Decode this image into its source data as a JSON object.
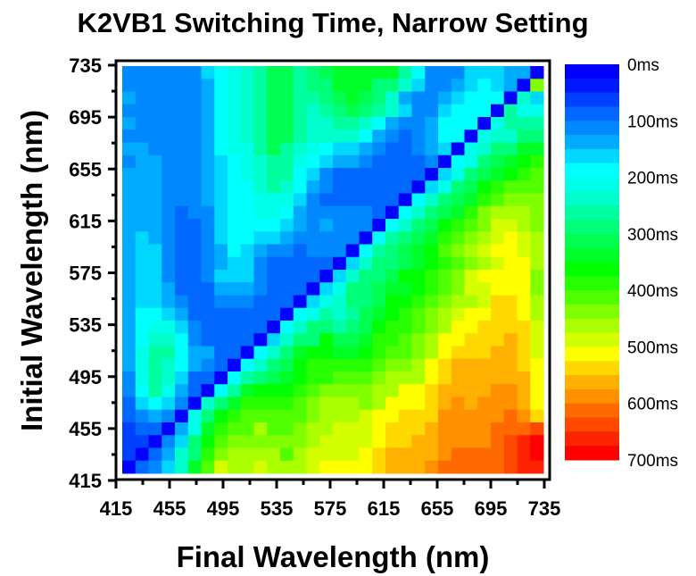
{
  "chart_data": {
    "type": "heatmap",
    "title": "K2VB1 Switching Time, Narrow Setting",
    "xlabel": "Final Wavelength (nm)",
    "ylabel": "Initial Wavelength (nm)",
    "xlim": [
      415,
      735
    ],
    "ylim": [
      415,
      735
    ],
    "x_ticks": [
      "415",
      "455",
      "495",
      "535",
      "575",
      "615",
      "655",
      "695",
      "735"
    ],
    "y_ticks": [
      "415",
      "455",
      "495",
      "535",
      "575",
      "615",
      "655",
      "695",
      "735"
    ],
    "x": [
      420,
      430,
      440,
      450,
      460,
      470,
      480,
      490,
      500,
      510,
      520,
      530,
      540,
      550,
      560,
      570,
      580,
      590,
      600,
      610,
      620,
      630,
      640,
      650,
      660,
      670,
      680,
      690,
      700,
      710,
      720,
      730
    ],
    "y_top_to_bottom": [
      730,
      720,
      710,
      700,
      690,
      680,
      670,
      660,
      650,
      640,
      630,
      620,
      610,
      600,
      590,
      580,
      570,
      560,
      550,
      540,
      530,
      520,
      510,
      500,
      490,
      480,
      470,
      460,
      450,
      440,
      430,
      420
    ],
    "z_unit": "ms",
    "z": [
      [
        100,
        100,
        100,
        100,
        100,
        100,
        150,
        175,
        200,
        225,
        250,
        300,
        300,
        250,
        275,
        300,
        325,
        325,
        325,
        325,
        325,
        250,
        175,
        100,
        100,
        100,
        150,
        150,
        150,
        125,
        125,
        0
      ],
      [
        100,
        100,
        100,
        100,
        100,
        100,
        125,
        175,
        200,
        225,
        250,
        300,
        300,
        250,
        275,
        275,
        325,
        325,
        325,
        275,
        275,
        225,
        150,
        100,
        100,
        125,
        150,
        175,
        150,
        125,
        0,
        425
      ],
      [
        125,
        100,
        100,
        100,
        100,
        100,
        125,
        175,
        200,
        225,
        250,
        300,
        300,
        250,
        250,
        275,
        300,
        325,
        300,
        275,
        225,
        125,
        100,
        100,
        125,
        150,
        175,
        175,
        175,
        0,
        225,
        150
      ],
      [
        100,
        100,
        100,
        100,
        100,
        100,
        125,
        175,
        200,
        225,
        250,
        300,
        300,
        250,
        225,
        250,
        275,
        300,
        275,
        250,
        225,
        150,
        100,
        100,
        150,
        175,
        175,
        175,
        0,
        250,
        200,
        200
      ],
      [
        125,
        100,
        100,
        100,
        100,
        100,
        125,
        175,
        200,
        225,
        250,
        300,
        300,
        250,
        225,
        225,
        250,
        250,
        225,
        175,
        125,
        100,
        100,
        125,
        175,
        175,
        175,
        0,
        200,
        250,
        250,
        250
      ],
      [
        100,
        100,
        100,
        100,
        100,
        100,
        125,
        175,
        200,
        225,
        250,
        300,
        300,
        250,
        225,
        225,
        225,
        225,
        175,
        125,
        100,
        75,
        100,
        125,
        175,
        175,
        0,
        200,
        225,
        225,
        275,
        275
      ],
      [
        125,
        125,
        100,
        100,
        100,
        100,
        125,
        175,
        200,
        200,
        250,
        300,
        250,
        225,
        200,
        175,
        150,
        150,
        125,
        100,
        75,
        75,
        100,
        125,
        150,
        0,
        200,
        225,
        275,
        275,
        325,
        325
      ],
      [
        100,
        125,
        125,
        100,
        100,
        100,
        125,
        150,
        175,
        200,
        225,
        250,
        250,
        200,
        175,
        150,
        125,
        125,
        100,
        75,
        75,
        75,
        75,
        100,
        0,
        175,
        200,
        275,
        300,
        325,
        350,
        375
      ],
      [
        125,
        125,
        125,
        100,
        100,
        100,
        125,
        150,
        175,
        200,
        225,
        250,
        250,
        175,
        150,
        100,
        75,
        75,
        75,
        75,
        75,
        75,
        75,
        0,
        150,
        200,
        275,
        300,
        325,
        350,
        375,
        400
      ],
      [
        125,
        125,
        125,
        100,
        100,
        100,
        125,
        150,
        175,
        175,
        225,
        250,
        225,
        175,
        125,
        100,
        75,
        75,
        75,
        75,
        75,
        75,
        0,
        150,
        200,
        275,
        300,
        350,
        375,
        400,
        400,
        400
      ],
      [
        125,
        125,
        125,
        100,
        100,
        100,
        125,
        150,
        175,
        175,
        200,
        200,
        200,
        150,
        100,
        75,
        75,
        75,
        75,
        75,
        75,
        0,
        175,
        225,
        275,
        300,
        325,
        375,
        400,
        425,
        425,
        425
      ],
      [
        125,
        125,
        125,
        100,
        75,
        100,
        100,
        150,
        175,
        175,
        200,
        200,
        175,
        125,
        100,
        100,
        100,
        100,
        100,
        75,
        0,
        175,
        225,
        275,
        300,
        325,
        375,
        425,
        450,
        450,
        450,
        425
      ],
      [
        125,
        125,
        125,
        100,
        75,
        75,
        100,
        150,
        175,
        175,
        175,
        175,
        150,
        125,
        100,
        125,
        100,
        100,
        100,
        0,
        175,
        225,
        275,
        300,
        350,
        375,
        400,
        425,
        475,
        475,
        450,
        425
      ],
      [
        125,
        150,
        125,
        100,
        75,
        75,
        100,
        150,
        175,
        175,
        150,
        150,
        125,
        100,
        100,
        100,
        100,
        100,
        0,
        175,
        250,
        275,
        300,
        325,
        375,
        400,
        425,
        450,
        475,
        500,
        475,
        450
      ],
      [
        125,
        150,
        150,
        100,
        75,
        75,
        100,
        125,
        175,
        150,
        125,
        100,
        100,
        75,
        100,
        100,
        100,
        0,
        175,
        250,
        275,
        300,
        325,
        350,
        400,
        425,
        450,
        475,
        500,
        500,
        475,
        450
      ],
      [
        125,
        150,
        150,
        100,
        75,
        75,
        100,
        125,
        150,
        150,
        100,
        75,
        75,
        75,
        75,
        75,
        0,
        150,
        225,
        275,
        275,
        300,
        325,
        350,
        375,
        400,
        425,
        450,
        475,
        500,
        500,
        450
      ],
      [
        125,
        150,
        150,
        100,
        75,
        75,
        100,
        150,
        150,
        150,
        100,
        75,
        75,
        75,
        75,
        0,
        150,
        225,
        275,
        275,
        300,
        350,
        350,
        375,
        400,
        425,
        475,
        500,
        500,
        500,
        500,
        425
      ],
      [
        125,
        150,
        150,
        125,
        75,
        75,
        75,
        125,
        125,
        125,
        100,
        75,
        75,
        75,
        0,
        150,
        200,
        275,
        275,
        300,
        325,
        325,
        350,
        375,
        400,
        425,
        475,
        475,
        500,
        500,
        500,
        425
      ],
      [
        125,
        150,
        150,
        125,
        100,
        75,
        75,
        100,
        100,
        100,
        75,
        75,
        75,
        0,
        150,
        200,
        225,
        275,
        275,
        300,
        350,
        350,
        375,
        400,
        425,
        450,
        450,
        475,
        525,
        525,
        500,
        450
      ],
      [
        125,
        175,
        175,
        150,
        125,
        75,
        75,
        75,
        75,
        75,
        75,
        75,
        0,
        175,
        200,
        250,
        225,
        250,
        300,
        325,
        350,
        375,
        400,
        425,
        450,
        475,
        500,
        500,
        525,
        525,
        500,
        450
      ],
      [
        125,
        175,
        200,
        200,
        150,
        100,
        75,
        75,
        75,
        75,
        75,
        0,
        175,
        225,
        275,
        275,
        250,
        275,
        300,
        350,
        375,
        375,
        400,
        425,
        450,
        500,
        500,
        525,
        525,
        525,
        525,
        475
      ],
      [
        125,
        175,
        225,
        225,
        175,
        100,
        75,
        75,
        75,
        75,
        0,
        150,
        225,
        275,
        275,
        350,
        300,
        300,
        325,
        375,
        375,
        400,
        425,
        450,
        500,
        500,
        525,
        525,
        525,
        550,
        525,
        475
      ],
      [
        125,
        200,
        250,
        250,
        175,
        125,
        125,
        75,
        75,
        0,
        175,
        225,
        275,
        325,
        350,
        350,
        325,
        325,
        350,
        375,
        400,
        400,
        425,
        450,
        500,
        525,
        525,
        525,
        550,
        550,
        525,
        475
      ],
      [
        125,
        200,
        250,
        225,
        175,
        125,
        100,
        75,
        0,
        175,
        225,
        275,
        300,
        350,
        375,
        375,
        375,
        375,
        375,
        400,
        425,
        425,
        450,
        500,
        525,
        550,
        550,
        550,
        550,
        550,
        525,
        500
      ],
      [
        100,
        200,
        250,
        225,
        150,
        75,
        75,
        0,
        175,
        250,
        275,
        300,
        325,
        350,
        375,
        375,
        400,
        400,
        400,
        425,
        450,
        450,
        450,
        500,
        525,
        550,
        550,
        550,
        550,
        550,
        550,
        500
      ],
      [
        100,
        175,
        250,
        200,
        125,
        75,
        0,
        175,
        250,
        325,
        350,
        350,
        350,
        375,
        400,
        425,
        425,
        425,
        425,
        450,
        450,
        500,
        500,
        525,
        550,
        550,
        550,
        550,
        575,
        575,
        550,
        500
      ],
      [
        75,
        150,
        175,
        150,
        100,
        0,
        225,
        275,
        325,
        375,
        375,
        375,
        375,
        400,
        425,
        450,
        450,
        450,
        425,
        450,
        500,
        500,
        500,
        525,
        550,
        575,
        550,
        575,
        575,
        575,
        550,
        500
      ],
      [
        75,
        100,
        125,
        100,
        0,
        200,
        275,
        350,
        375,
        400,
        400,
        400,
        400,
        400,
        425,
        450,
        450,
        450,
        475,
        500,
        500,
        525,
        525,
        525,
        575,
        575,
        575,
        575,
        575,
        600,
        575,
        525
      ],
      [
        50,
        75,
        75,
        0,
        125,
        200,
        325,
        375,
        400,
        400,
        450,
        400,
        400,
        425,
        450,
        450,
        475,
        475,
        475,
        500,
        525,
        525,
        525,
        550,
        575,
        575,
        575,
        575,
        600,
        600,
        600,
        625
      ],
      [
        50,
        50,
        0,
        100,
        150,
        275,
        350,
        400,
        425,
        425,
        425,
        425,
        425,
        425,
        450,
        475,
        475,
        475,
        475,
        500,
        525,
        525,
        550,
        550,
        575,
        575,
        575,
        575,
        600,
        625,
        650,
        675
      ],
      [
        50,
        0,
        75,
        125,
        225,
        275,
        375,
        425,
        450,
        450,
        450,
        450,
        400,
        450,
        475,
        475,
        475,
        475,
        500,
        525,
        550,
        550,
        550,
        550,
        575,
        600,
        600,
        600,
        600,
        625,
        650,
        675
      ],
      [
        0,
        75,
        100,
        150,
        225,
        325,
        400,
        475,
        450,
        450,
        475,
        450,
        450,
        450,
        475,
        500,
        500,
        500,
        500,
        525,
        550,
        550,
        550,
        575,
        600,
        600,
        600,
        600,
        600,
        625,
        650,
        650
      ]
    ],
    "colorbar": {
      "range": [
        0,
        700
      ],
      "step": 25,
      "labels": [
        {
          "value": 0,
          "text": "0ms"
        },
        {
          "value": 100,
          "text": "100ms"
        },
        {
          "value": 200,
          "text": "200ms"
        },
        {
          "value": 300,
          "text": "300ms"
        },
        {
          "value": 400,
          "text": "400ms"
        },
        {
          "value": 500,
          "text": "500ms"
        },
        {
          "value": 600,
          "text": "600ms"
        },
        {
          "value": 700,
          "text": "700ms"
        }
      ],
      "colors": [
        "#0000ff",
        "#0018ff",
        "#0040ff",
        "#0068ff",
        "#0088ff",
        "#00aaff",
        "#00d8ff",
        "#00ffff",
        "#00ffe8",
        "#00ffcc",
        "#00ffa0",
        "#00ff78",
        "#00ff50",
        "#00ff28",
        "#00ff00",
        "#28ff00",
        "#50ff00",
        "#80ff00",
        "#aaff00",
        "#d4ff00",
        "#ffff00",
        "#ffd800",
        "#ffb000",
        "#ff9000",
        "#ff6a00",
        "#ff4800",
        "#ff2400",
        "#ff0000"
      ]
    },
    "grid": false,
    "legend": "right"
  }
}
